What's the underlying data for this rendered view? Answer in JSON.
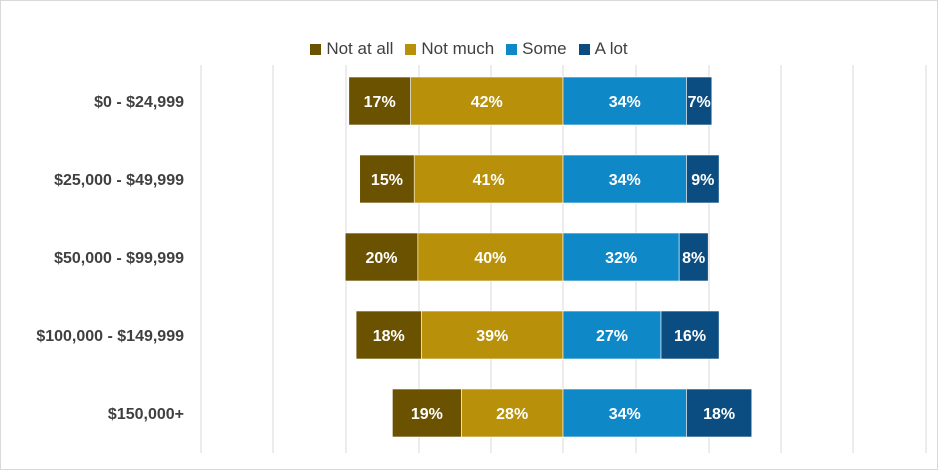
{
  "chart_data": {
    "type": "bar",
    "orientation": "horizontal",
    "stacking": "diverging",
    "categories": [
      "$0 - $24,999",
      "$25,000 - $49,999",
      "$50,000 - $99,999",
      "$100,000 - $149,999",
      "$150,000+"
    ],
    "series": [
      {
        "name": "Not at all",
        "color": "#6b5200",
        "side": "negative",
        "values": [
          17,
          15,
          20,
          18,
          19
        ]
      },
      {
        "name": "Not much",
        "color": "#b8900a",
        "side": "negative",
        "values": [
          42,
          41,
          40,
          39,
          28
        ]
      },
      {
        "name": "Some",
        "color": "#0f88c8",
        "side": "positive",
        "values": [
          34,
          34,
          32,
          27,
          34
        ]
      },
      {
        "name": "A lot",
        "color": "#0b4d80",
        "side": "positive",
        "values": [
          7,
          9,
          8,
          16,
          18
        ]
      }
    ],
    "data_labels": [
      [
        "17%",
        "15%",
        "20%",
        "18%",
        "19%"
      ],
      [
        "42%",
        "41%",
        "40%",
        "39%",
        "28%"
      ],
      [
        "34%",
        "34%",
        "32%",
        "27%",
        "34%"
      ],
      [
        "7%",
        "9%",
        "8%",
        "16%",
        "18%"
      ]
    ],
    "xlim": [
      -100,
      100
    ],
    "gridlines": "vertical",
    "legend": "top-center",
    "title": "",
    "xlabel": "",
    "ylabel": ""
  }
}
